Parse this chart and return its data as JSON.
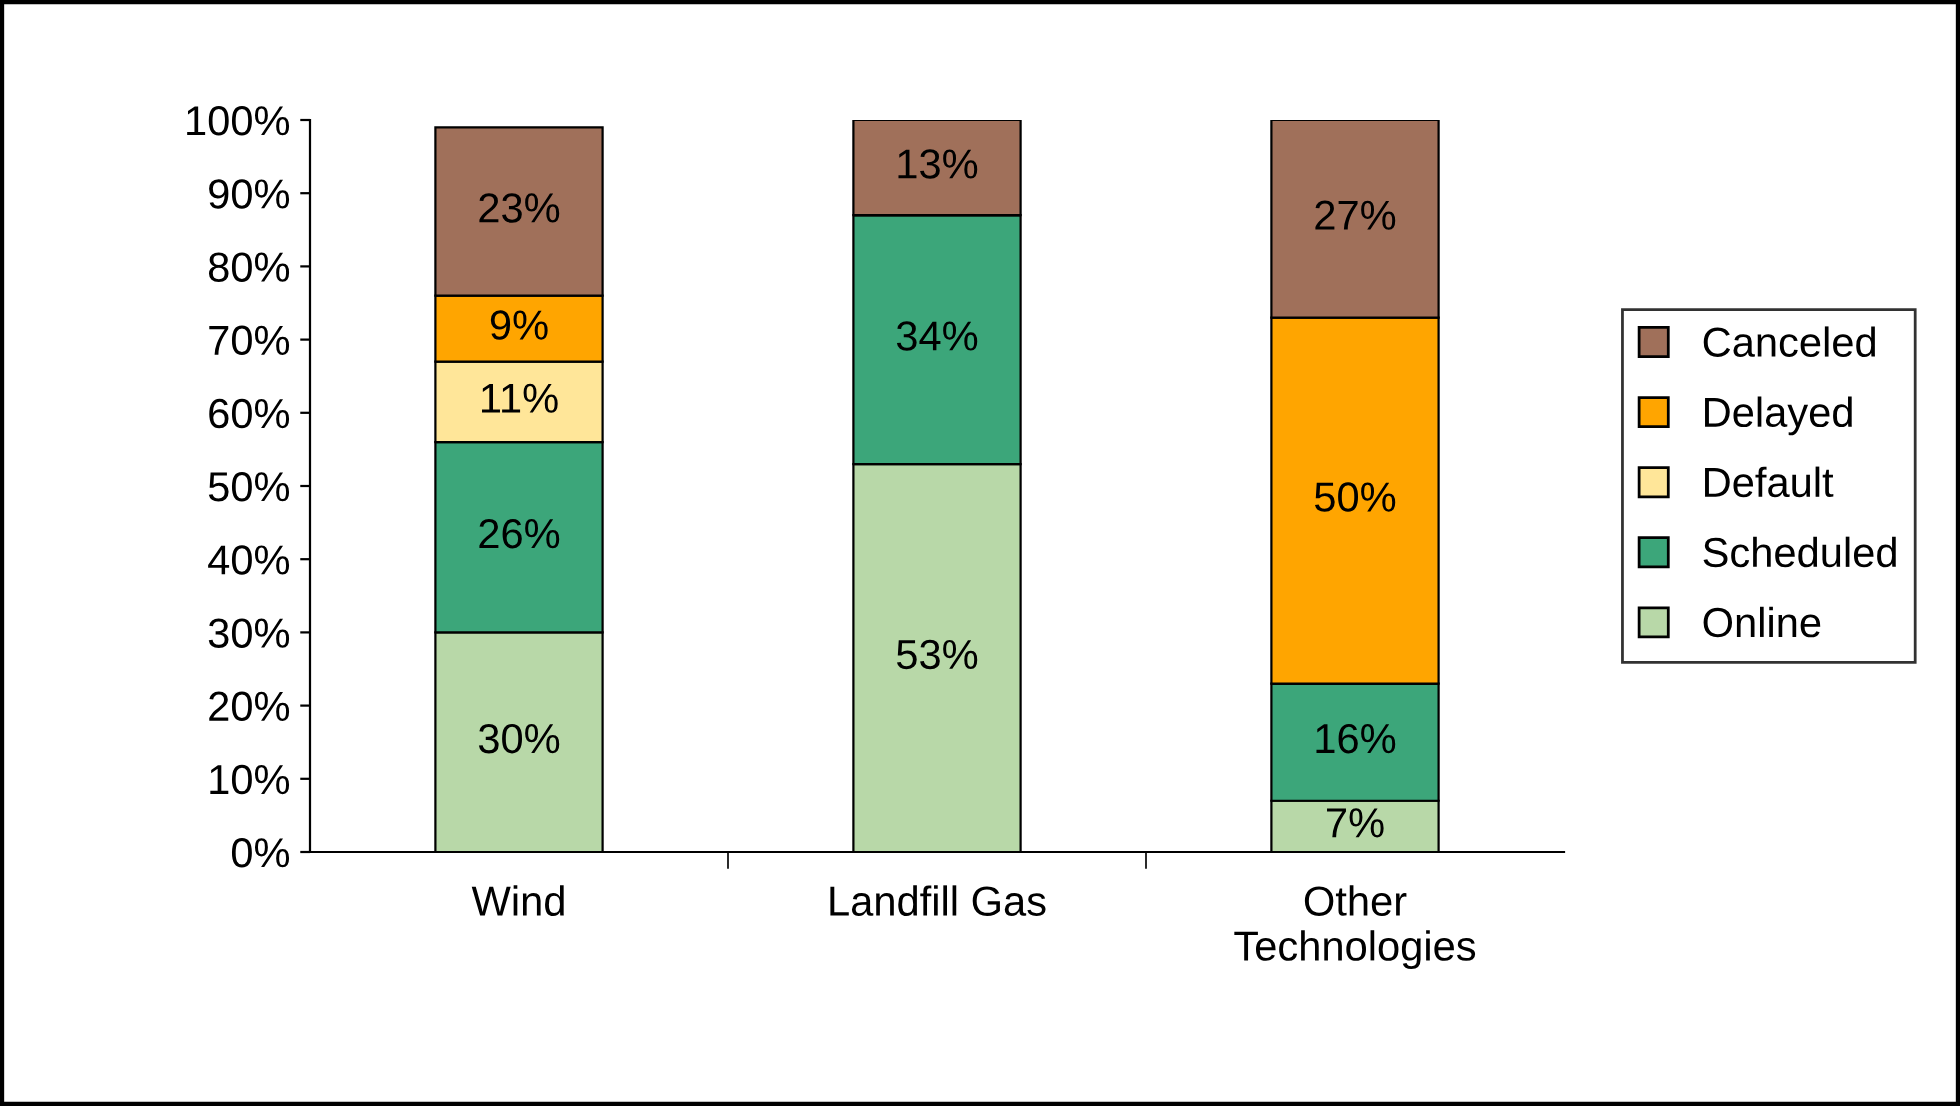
{
  "chart_data": {
    "type": "bar",
    "stacked": true,
    "categories": [
      "Wind",
      "Landfill Gas",
      "Other\nTechnologies"
    ],
    "series": [
      {
        "name": "Online",
        "color": "#b8d8a8",
        "values": [
          30,
          53,
          7
        ],
        "value_labels": [
          "30%",
          "53%",
          "7%"
        ]
      },
      {
        "name": "Scheduled",
        "color": "#3ca67a",
        "values": [
          26,
          34,
          16
        ],
        "value_labels": [
          "26%",
          "34%",
          "16%"
        ]
      },
      {
        "name": "Default",
        "color": "#ffe699",
        "values": [
          11,
          0,
          0
        ],
        "value_labels": [
          "11%",
          null,
          null
        ]
      },
      {
        "name": "Delayed",
        "color": "#ffa500",
        "values": [
          9,
          0,
          50
        ],
        "value_labels": [
          "9%",
          null,
          "50%"
        ]
      },
      {
        "name": "Canceled",
        "color": "#a0705a",
        "values": [
          23,
          13,
          27
        ],
        "value_labels": [
          "23%",
          "13%",
          "27%"
        ]
      }
    ],
    "ylim": [
      0,
      100
    ],
    "yticks": [
      {
        "value": 0,
        "label": "0%"
      },
      {
        "value": 10,
        "label": "10%"
      },
      {
        "value": 20,
        "label": "20%"
      },
      {
        "value": 30,
        "label": "30%"
      },
      {
        "value": 40,
        "label": "40%"
      },
      {
        "value": 50,
        "label": "50%"
      },
      {
        "value": 60,
        "label": "60%"
      },
      {
        "value": 70,
        "label": "70%"
      },
      {
        "value": 80,
        "label": "80%"
      },
      {
        "value": 90,
        "label": "90%"
      },
      {
        "value": 100,
        "label": "100%"
      }
    ],
    "grid": false,
    "legend": "right"
  }
}
